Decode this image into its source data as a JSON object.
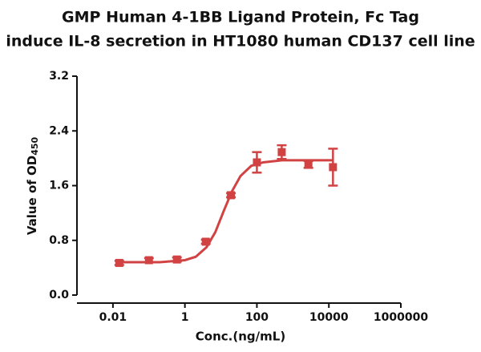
{
  "chart_data": {
    "type": "dose-response",
    "title": [
      "GMP Human 4-1BB Ligand Protein, Fc Tag",
      "induce IL-8 secretion in HT1080 human CD137 cell line"
    ],
    "x_label": "Conc.(ng/mL)",
    "y_label": {
      "text": "Value of OD",
      "subscript": "450"
    },
    "x_scale": "log",
    "xlim": [
      0.001,
      1000000
    ],
    "xticks": [
      0.01,
      1,
      100,
      10000,
      1000000
    ],
    "ylim": [
      0,
      3.2
    ],
    "yticks": [
      {
        "value": 0,
        "label": "0.0"
      },
      {
        "value": 0.8,
        "label": "0.8"
      },
      {
        "value": 1.6,
        "label": "1.6"
      },
      {
        "value": 2.4,
        "label": "2.4"
      },
      {
        "value": 3.2,
        "label": "3.2"
      }
    ],
    "color": "#d14343",
    "x": [
      0.015,
      0.1,
      0.6,
      3.8,
      19,
      100,
      490,
      2700,
      13000
    ],
    "values": [
      0.47,
      0.51,
      0.52,
      0.78,
      1.46,
      1.94,
      2.09,
      1.91,
      1.87
    ],
    "errors": [
      0.03,
      0.03,
      0.03,
      0.03,
      0.03,
      0.15,
      0.1,
      0.05,
      0.27
    ],
    "fit_curve": {
      "x": [
        0.015,
        0.2,
        1,
        2,
        4,
        7,
        12,
        20,
        35,
        70,
        150,
        500,
        13000
      ],
      "y": [
        0.48,
        0.48,
        0.51,
        0.56,
        0.7,
        0.92,
        1.23,
        1.51,
        1.74,
        1.89,
        1.94,
        1.97,
        1.97
      ]
    }
  }
}
